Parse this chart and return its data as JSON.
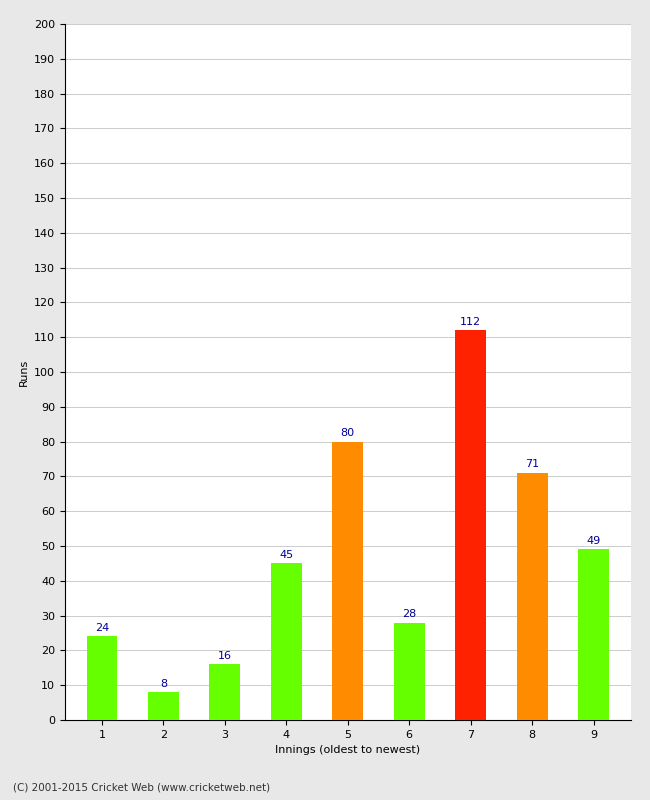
{
  "categories": [
    "1",
    "2",
    "3",
    "4",
    "5",
    "6",
    "7",
    "8",
    "9"
  ],
  "values": [
    24,
    8,
    16,
    45,
    80,
    28,
    112,
    71,
    49
  ],
  "bar_colors": [
    "#66ff00",
    "#66ff00",
    "#66ff00",
    "#66ff00",
    "#ff8c00",
    "#66ff00",
    "#ff2200",
    "#ff8c00",
    "#66ff00"
  ],
  "xlabel": "Innings (oldest to newest)",
  "ylabel": "Runs",
  "ylim": [
    0,
    200
  ],
  "yticks": [
    0,
    10,
    20,
    30,
    40,
    50,
    60,
    70,
    80,
    90,
    100,
    110,
    120,
    130,
    140,
    150,
    160,
    170,
    180,
    190,
    200
  ],
  "label_color": "#000099",
  "label_fontsize": 8,
  "axis_label_fontsize": 8,
  "tick_fontsize": 8,
  "background_color": "#e8e8e8",
  "plot_bg_color": "#ffffff",
  "footer": "(C) 2001-2015 Cricket Web (www.cricketweb.net)",
  "bar_width": 0.5
}
